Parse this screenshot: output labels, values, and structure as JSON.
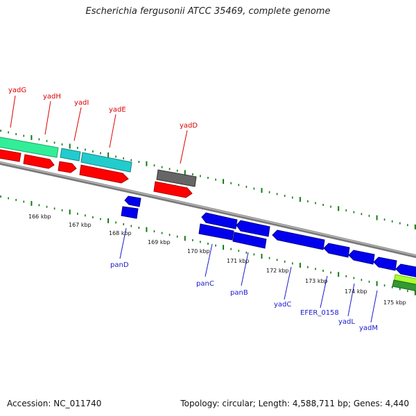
{
  "title": "Escherichia fergusonii ATCC 35469, complete genome",
  "footer": {
    "accession": "Accession: NC_011740",
    "summary": "Topology: circular; Length: 4,588,711 bp; Genes: 4,440"
  },
  "colors": {
    "forward_cds": "#ff0000",
    "reverse_cds": "#0000ee",
    "forward_label": "#dd0000",
    "reverse_label": "#1a1acc",
    "backbone": "#888888",
    "ticks": "#107a10",
    "orf_green": "#33ee99",
    "orf_cyan": "#22cccc",
    "orf_gray": "#666666",
    "orf_lime": "#aaff33",
    "orf_darkgreen": "#339933"
  },
  "scale_labels": [
    "166 kbp",
    "167 kbp",
    "168 kbp",
    "169 kbp",
    "170 kbp",
    "171 kbp",
    "172 kbp",
    "173 kbp",
    "174 kbp",
    "175 kbp"
  ],
  "forward_genes": [
    "yadG",
    "yadH",
    "yadI",
    "yadE",
    "yadD"
  ],
  "reverse_genes": [
    "panD",
    "panC",
    "panB",
    "yadC",
    "EFER_0158",
    "yadL",
    "yadM"
  ]
}
